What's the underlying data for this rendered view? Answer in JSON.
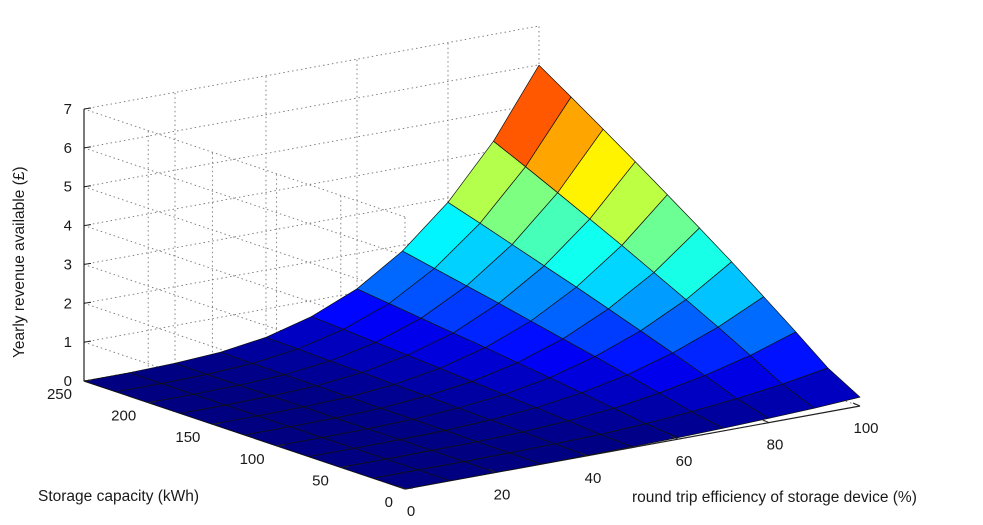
{
  "chart_data": {
    "type": "surface",
    "title": "",
    "xlabel": "round trip efficiency of storage device (%)",
    "ylabel": "Storage capacity (kWh)",
    "zlabel": "Yearly revenue available (£)",
    "x_ticks": [
      "0",
      "20",
      "40",
      "60",
      "80",
      "100"
    ],
    "y_ticks": [
      "0",
      "50",
      "100",
      "150",
      "200",
      "250"
    ],
    "z_ticks": [
      "0",
      "1",
      "2",
      "3",
      "4",
      "5",
      "6",
      "7"
    ],
    "xlim": [
      0,
      100
    ],
    "ylim": [
      0,
      250
    ],
    "zlim": [
      0,
      7
    ],
    "grid": true,
    "colormap": "jet",
    "x": [
      0,
      10,
      20,
      30,
      40,
      50,
      60,
      70,
      80,
      90,
      100
    ],
    "y": [
      0,
      25,
      50,
      75,
      100,
      125,
      150,
      175,
      200,
      225,
      250
    ],
    "z_rows_by_y": [
      [
        0,
        0,
        0,
        0,
        0.01,
        0.02,
        0.04,
        0.07,
        0.11,
        0.16,
        0.23
      ],
      [
        0,
        0,
        0,
        0.01,
        0.03,
        0.06,
        0.12,
        0.22,
        0.34,
        0.5,
        0.7
      ],
      [
        0,
        0,
        0.01,
        0.02,
        0.06,
        0.13,
        0.24,
        0.42,
        0.66,
        0.96,
        1.35
      ],
      [
        0,
        0,
        0.01,
        0.03,
        0.09,
        0.19,
        0.36,
        0.61,
        0.96,
        1.41,
        1.98
      ],
      [
        0,
        0,
        0.01,
        0.04,
        0.12,
        0.25,
        0.47,
        0.8,
        1.25,
        1.84,
        2.6
      ],
      [
        0,
        0,
        0.01,
        0.05,
        0.15,
        0.31,
        0.58,
        0.98,
        1.54,
        2.26,
        3.19
      ],
      [
        0,
        0,
        0.02,
        0.06,
        0.17,
        0.37,
        0.69,
        1.16,
        1.82,
        2.68,
        3.77
      ],
      [
        0,
        0,
        0.02,
        0.07,
        0.2,
        0.43,
        0.79,
        1.34,
        2.09,
        3.08,
        4.34
      ],
      [
        0,
        0,
        0.02,
        0.08,
        0.22,
        0.48,
        0.89,
        1.51,
        2.36,
        3.48,
        4.9
      ],
      [
        0,
        0,
        0.02,
        0.09,
        0.25,
        0.54,
        0.99,
        1.68,
        2.63,
        3.87,
        5.45
      ],
      [
        0,
        0,
        0.03,
        0.1,
        0.27,
        0.59,
        1.09,
        1.85,
        2.89,
        4.25,
        5.99
      ]
    ]
  }
}
